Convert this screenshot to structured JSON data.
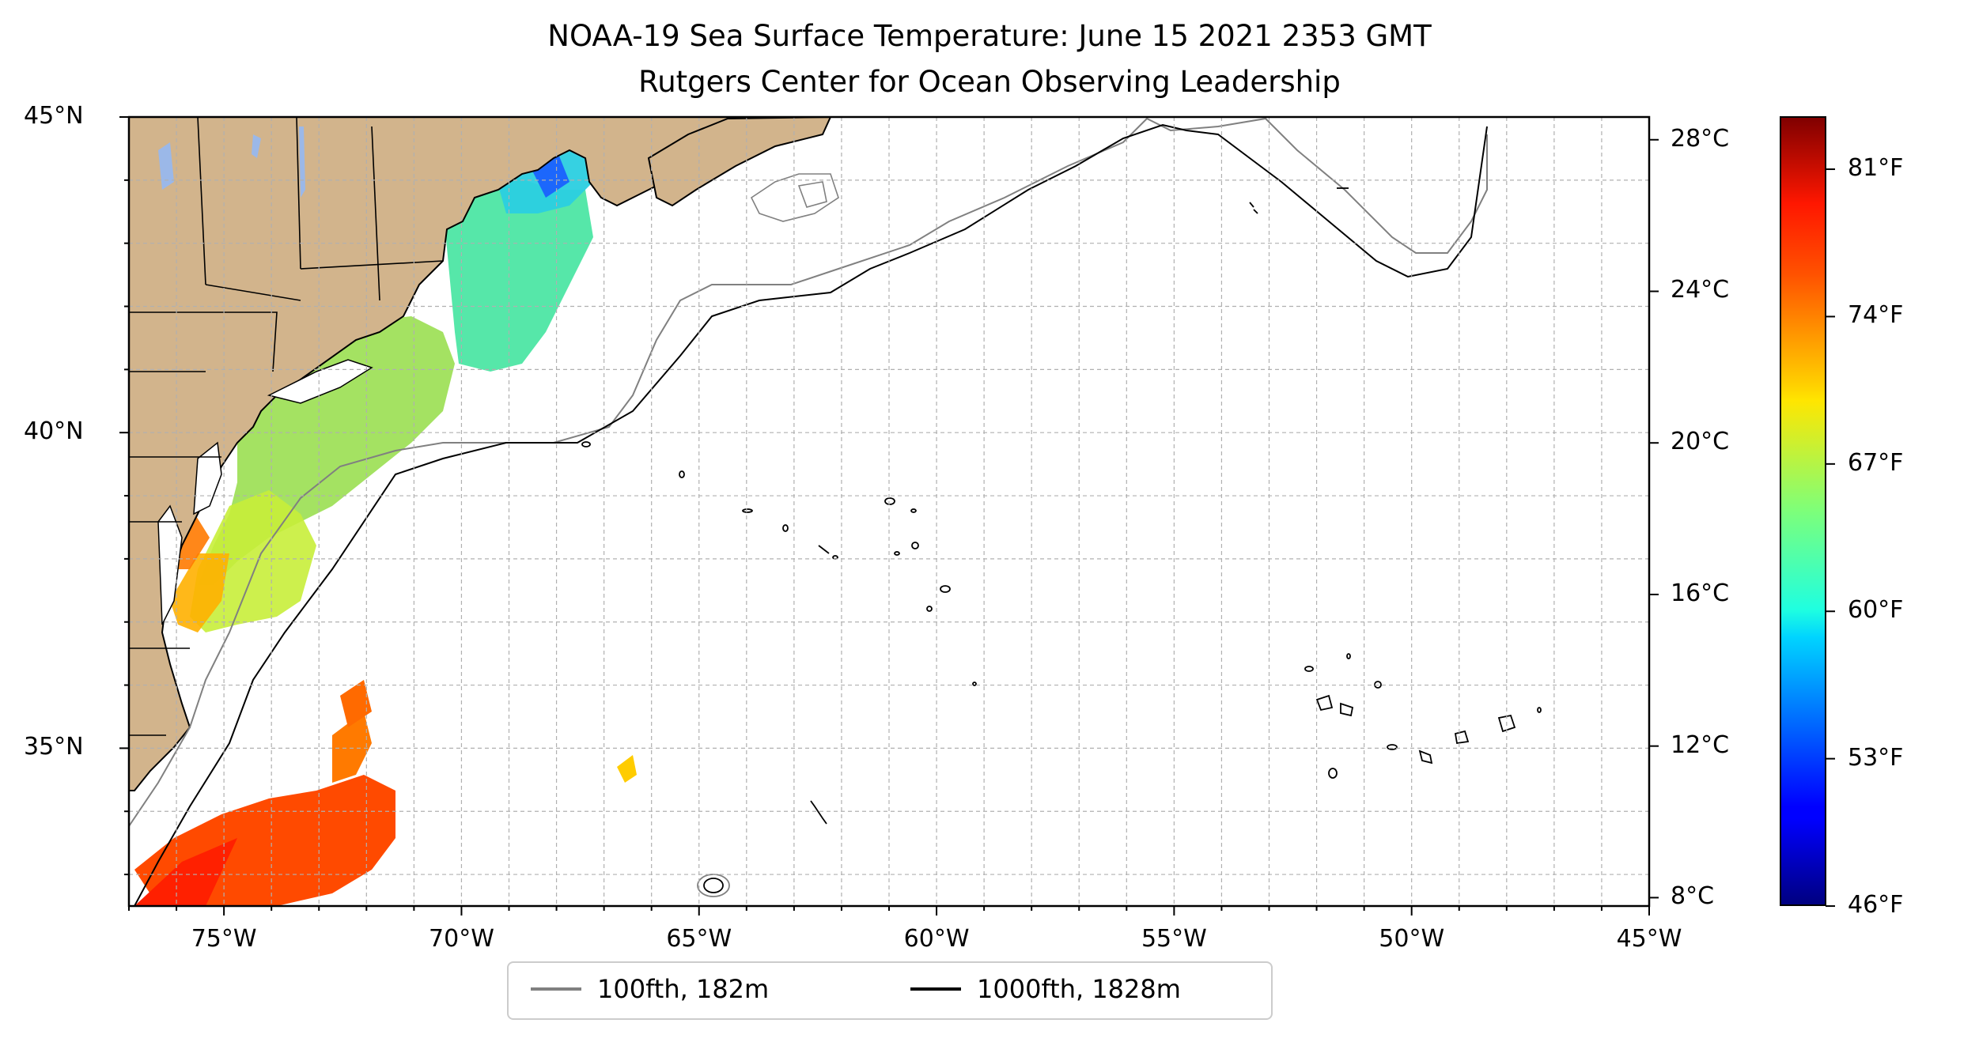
{
  "title": {
    "line1": "NOAA-19 Sea Surface Temperature: June 15 2021 2353 GMT",
    "line2": "Rutgers Center for Ocean Observing Leadership"
  },
  "map": {
    "lon_range": [
      -77,
      -45
    ],
    "lat_range": [
      32.5,
      45
    ],
    "land_color": "#d2b48c",
    "lake_color": "#9bb8e8",
    "grid": true,
    "x_ticks": [
      {
        "lon": -75,
        "label": "75°W"
      },
      {
        "lon": -70,
        "label": "70°W"
      },
      {
        "lon": -65,
        "label": "65°W"
      },
      {
        "lon": -60,
        "label": "60°W"
      },
      {
        "lon": -55,
        "label": "55°W"
      },
      {
        "lon": -50,
        "label": "50°W"
      },
      {
        "lon": -45,
        "label": "45°W"
      }
    ],
    "y_ticks": [
      {
        "lat": 45,
        "label": "45°N"
      },
      {
        "lat": 40,
        "label": "40°N"
      },
      {
        "lat": 35,
        "label": "35°N"
      }
    ]
  },
  "colorbar": {
    "colormap": "jet",
    "range_c": [
      7.8,
      28.6
    ],
    "celsius_ticks": [
      {
        "value": 28,
        "label": "28°C"
      },
      {
        "value": 24,
        "label": "24°C"
      },
      {
        "value": 20,
        "label": "20°C"
      },
      {
        "value": 16,
        "label": "16°C"
      },
      {
        "value": 12,
        "label": "12°C"
      },
      {
        "value": 8,
        "label": "8°C"
      }
    ],
    "fahrenheit_ticks": [
      {
        "value": 81,
        "label": "81°F"
      },
      {
        "value": 74,
        "label": "74°F"
      },
      {
        "value": 67,
        "label": "67°F"
      },
      {
        "value": 60,
        "label": "60°F"
      },
      {
        "value": 53,
        "label": "53°F"
      },
      {
        "value": 46,
        "label": "46°F"
      }
    ]
  },
  "legend": {
    "items": [
      {
        "label": "100fth, 182m",
        "color": "#808080"
      },
      {
        "label": "1000fth, 1828m",
        "color": "#000000"
      }
    ]
  }
}
